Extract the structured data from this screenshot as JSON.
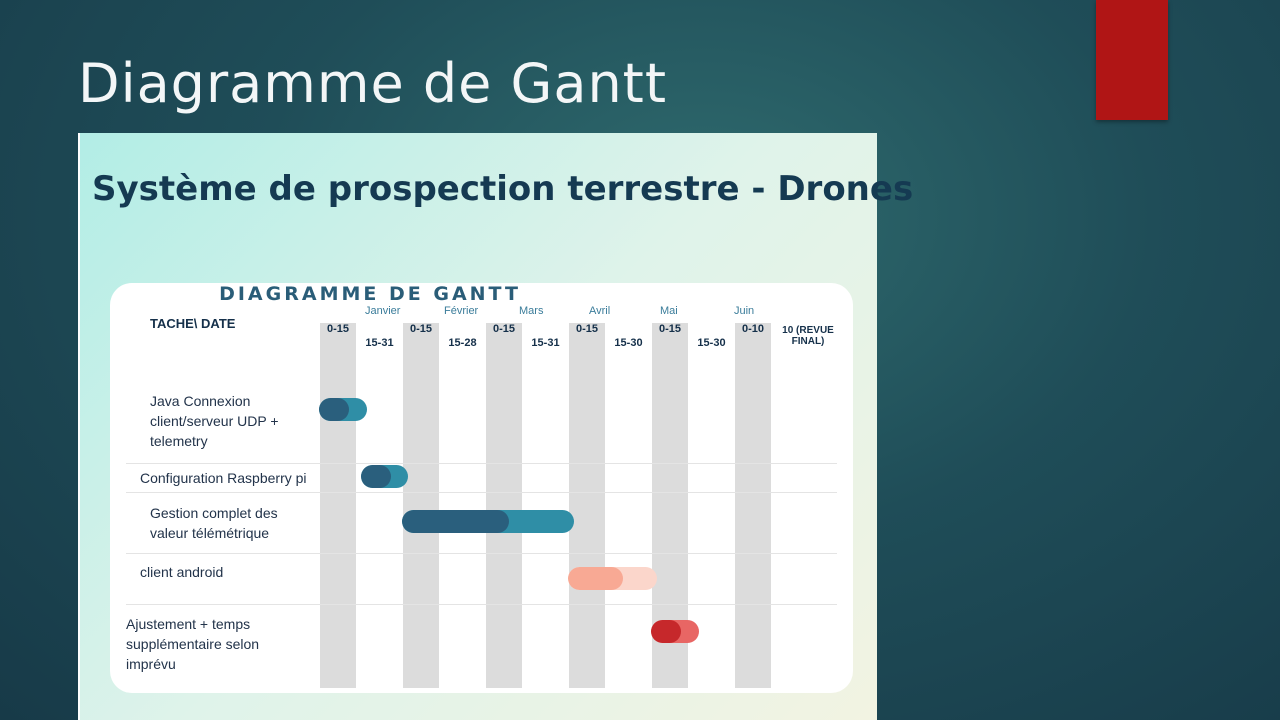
{
  "slide": {
    "title": "Diagramme de Gantt"
  },
  "panel": {
    "heading": "Système de prospection terrestre - Drones"
  },
  "gantt": {
    "title": "DIAGRAMME DE GANTT",
    "task_header": "TACHE\\ DATE",
    "months": [
      "Janvier",
      "Février",
      "Mars",
      "Avril",
      "Mai",
      "Juin"
    ],
    "periods": [
      "0-15",
      "15-31",
      "0-15",
      "15-28",
      "0-15",
      "15-31",
      "0-15",
      "15-30",
      "0-15",
      "15-30",
      "0-10"
    ],
    "final_period": "10 (REVUE FINAL)",
    "tasks": [
      {
        "label": "Java Connexion client/serveur UDP + telemetry",
        "start": 0,
        "end": 1,
        "color_dark": "#2a5f7d",
        "color_light": "#2f8ea6"
      },
      {
        "label": "Configuration Raspberry pi",
        "start": 1,
        "end": 2,
        "color_dark": "#2a5f7d",
        "color_light": "#2f8ea6"
      },
      {
        "label": "Gestion complet des valeur télémétrique",
        "start": 2,
        "end": 6,
        "color_dark": "#2a5f7d",
        "color_light": "#2f8ea6"
      },
      {
        "label": "client android",
        "start": 6,
        "end": 8,
        "color_dark": "#f8a994",
        "color_light": "#fbd6cb"
      },
      {
        "label": "Ajustement + temps supplémentaire selon imprévu",
        "start": 8,
        "end": 9,
        "color_dark": "#c6282b",
        "color_light": "#e86664"
      }
    ]
  }
}
